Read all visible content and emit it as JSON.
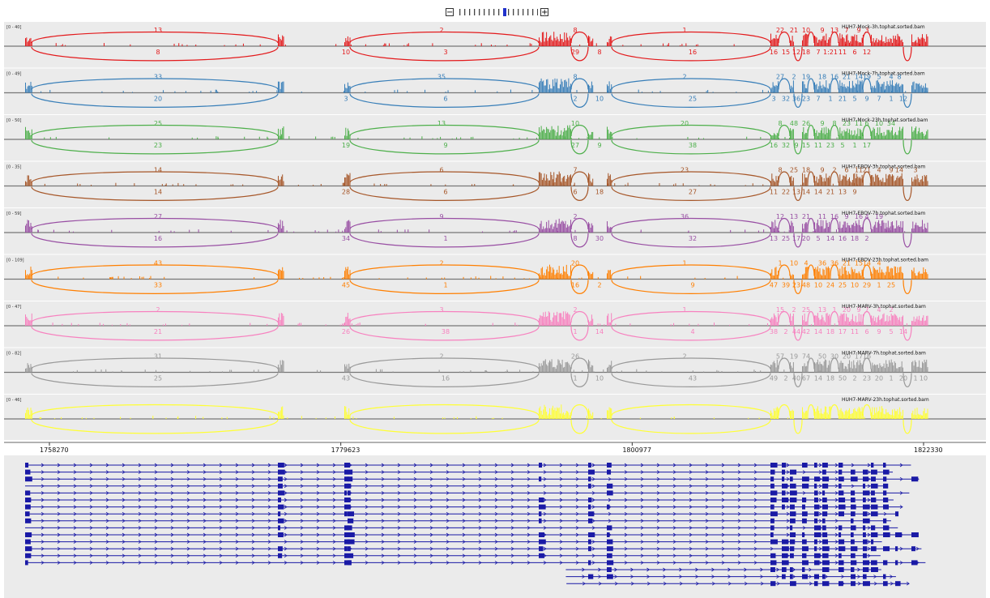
{
  "zoom": {
    "out_label": "−",
    "in_label": "+",
    "tick_count": 17,
    "current_level": 9
  },
  "colors": {
    "panel_bg": "#ebebeb",
    "baseline": "#777777",
    "gene": "#1a1aa6",
    "tracks": [
      "#e31a1c",
      "#377eb8",
      "#4daf4a",
      "#a65628",
      "#984ea3",
      "#ff7f00",
      "#f781bf",
      "#999999",
      "#ffff33"
    ]
  },
  "tracks": [
    {
      "range": "[0 - 40]",
      "name": "HUH7-Mock-3h.tophat.sorted.bam",
      "color": "#e31a1c",
      "top_labels": [
        "13",
        "2",
        "8",
        "1",
        "22",
        "21",
        "10",
        "9",
        "13",
        "7",
        "9",
        "3"
      ],
      "bottom_labels": [
        "8",
        "10",
        "3",
        "29",
        "8",
        "16",
        "16",
        "15",
        "12",
        "18",
        "7",
        "1:21",
        "11",
        "6",
        "12"
      ]
    },
    {
      "range": "[0 - 49]",
      "name": "HUH7-Mock-7h.tophat.sorted.bam",
      "color": "#377eb8",
      "top_labels": [
        "33",
        "35",
        "8",
        "2",
        "27",
        "2",
        "19",
        "18",
        "16",
        "21",
        "14",
        "19",
        "5",
        "4",
        "8"
      ],
      "bottom_labels": [
        "20",
        "3",
        "6",
        "2",
        "10",
        "25",
        "3",
        "32",
        "36",
        "23",
        "7",
        "1",
        "21",
        "5",
        "9",
        "7",
        "1",
        "12"
      ]
    },
    {
      "range": "[0 - 50]",
      "name": "HUH7-Mock-23h.tophat.sorted.bam",
      "color": "#4daf4a",
      "top_labels": [
        "25",
        "13",
        "10",
        "20",
        "8",
        "48",
        "26",
        "9",
        "8",
        "23",
        "11",
        "6",
        "10",
        "34"
      ],
      "bottom_labels": [
        "23",
        "19",
        "9",
        "27",
        "9",
        "38",
        "16",
        "32",
        "9",
        "15",
        "11",
        "23",
        "5",
        "1",
        "17"
      ]
    },
    {
      "range": "[0 - 35]",
      "name": "HUH7-EBOV-3h.tophat.sorted.bam",
      "color": "#a65628",
      "top_labels": [
        "14",
        "6",
        "7",
        "23",
        "8",
        "25",
        "18",
        "9",
        "2",
        "6",
        "11",
        "21",
        "4",
        "9",
        "14",
        "3"
      ],
      "bottom_labels": [
        "14",
        "28",
        "6",
        "6",
        "18",
        "27",
        "11",
        "22",
        "13",
        "14",
        "14",
        "21",
        "13",
        "9"
      ]
    },
    {
      "range": "[0 - 59]",
      "name": "HUH7-EBOV-7h.tophat.sorted.bam",
      "color": "#984ea3",
      "top_labels": [
        "27",
        "9",
        "2",
        "36",
        "12",
        "13",
        "21",
        "11",
        "16",
        "9",
        "16",
        "4",
        "19"
      ],
      "bottom_labels": [
        "16",
        "34",
        "1",
        "8",
        "30",
        "32",
        "13",
        "25",
        "17",
        "20",
        "5",
        "14",
        "16",
        "18",
        "2"
      ]
    },
    {
      "range": "[0 - 109]",
      "name": "HUH7-EBOV-23h.tophat.sorted.bam",
      "color": "#ff7f00",
      "top_labels": [
        "43",
        "2",
        "20",
        "1",
        "1",
        "10",
        "4",
        "36",
        "36",
        "21",
        "15",
        "14",
        "4"
      ],
      "bottom_labels": [
        "33",
        "45",
        "1",
        "16",
        "2",
        "9",
        "47",
        "39",
        "23",
        "48",
        "10",
        "24",
        "25",
        "10",
        "29",
        "1",
        "25"
      ]
    },
    {
      "range": "[0 - 47]",
      "name": "HUH7-MARV-3h.tophat.sorted.bam",
      "color": "#f781bf",
      "top_labels": [
        "2",
        "3",
        "2",
        "1",
        "15",
        "2",
        "25",
        "13",
        "1",
        "20",
        "9",
        "7",
        "4",
        "2"
      ],
      "bottom_labels": [
        "21",
        "26",
        "38",
        "1",
        "14",
        "4",
        "38",
        "2",
        "44",
        "42",
        "14",
        "18",
        "17",
        "11",
        "6",
        "9",
        "5",
        "14"
      ]
    },
    {
      "range": "[0 - 82]",
      "name": "HUH7-MARV-7h.tophat.sorted.bam",
      "color": "#999999",
      "top_labels": [
        "31",
        "2",
        "26",
        "2",
        "57",
        "19",
        "74",
        "50",
        "30",
        "20",
        "17",
        "16"
      ],
      "bottom_labels": [
        "25",
        "43",
        "16",
        "1",
        "10",
        "43",
        "49",
        "2",
        "40",
        "67",
        "14",
        "18",
        "50",
        "2",
        "23",
        "20",
        "1",
        "20",
        "1",
        "10"
      ]
    },
    {
      "range": "[0 - 46]",
      "name": "HUH7-MARV-23h.tophat.sorted.bam",
      "color": "#ffff33",
      "top_labels": [],
      "bottom_labels": []
    }
  ],
  "ruler": {
    "ticks": [
      "1758270",
      "1779623",
      "1800977",
      "1822330"
    ]
  }
}
